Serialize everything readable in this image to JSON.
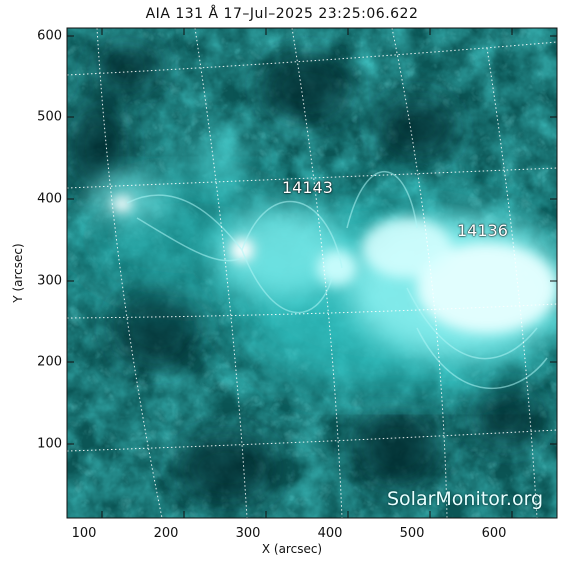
{
  "title": "AIA 131 Å 17–Jul–2025 23:25:06.622",
  "x_axis": {
    "label": "X (arcsec)",
    "ticks": [
      "100",
      "200",
      "300",
      "400",
      "500",
      "600"
    ]
  },
  "y_axis": {
    "label": "Y (arcsec)",
    "ticks": [
      "600",
      "500",
      "400",
      "300",
      "200",
      "100"
    ]
  },
  "regions": [
    {
      "label": "14143"
    },
    {
      "label": "14136"
    }
  ],
  "watermark": "SolarMonitor.org",
  "colors": {
    "base": "#0c4d4d",
    "bright": "#c8ffff",
    "mid": "#1fa3a3",
    "grid": "#ffffff"
  }
}
